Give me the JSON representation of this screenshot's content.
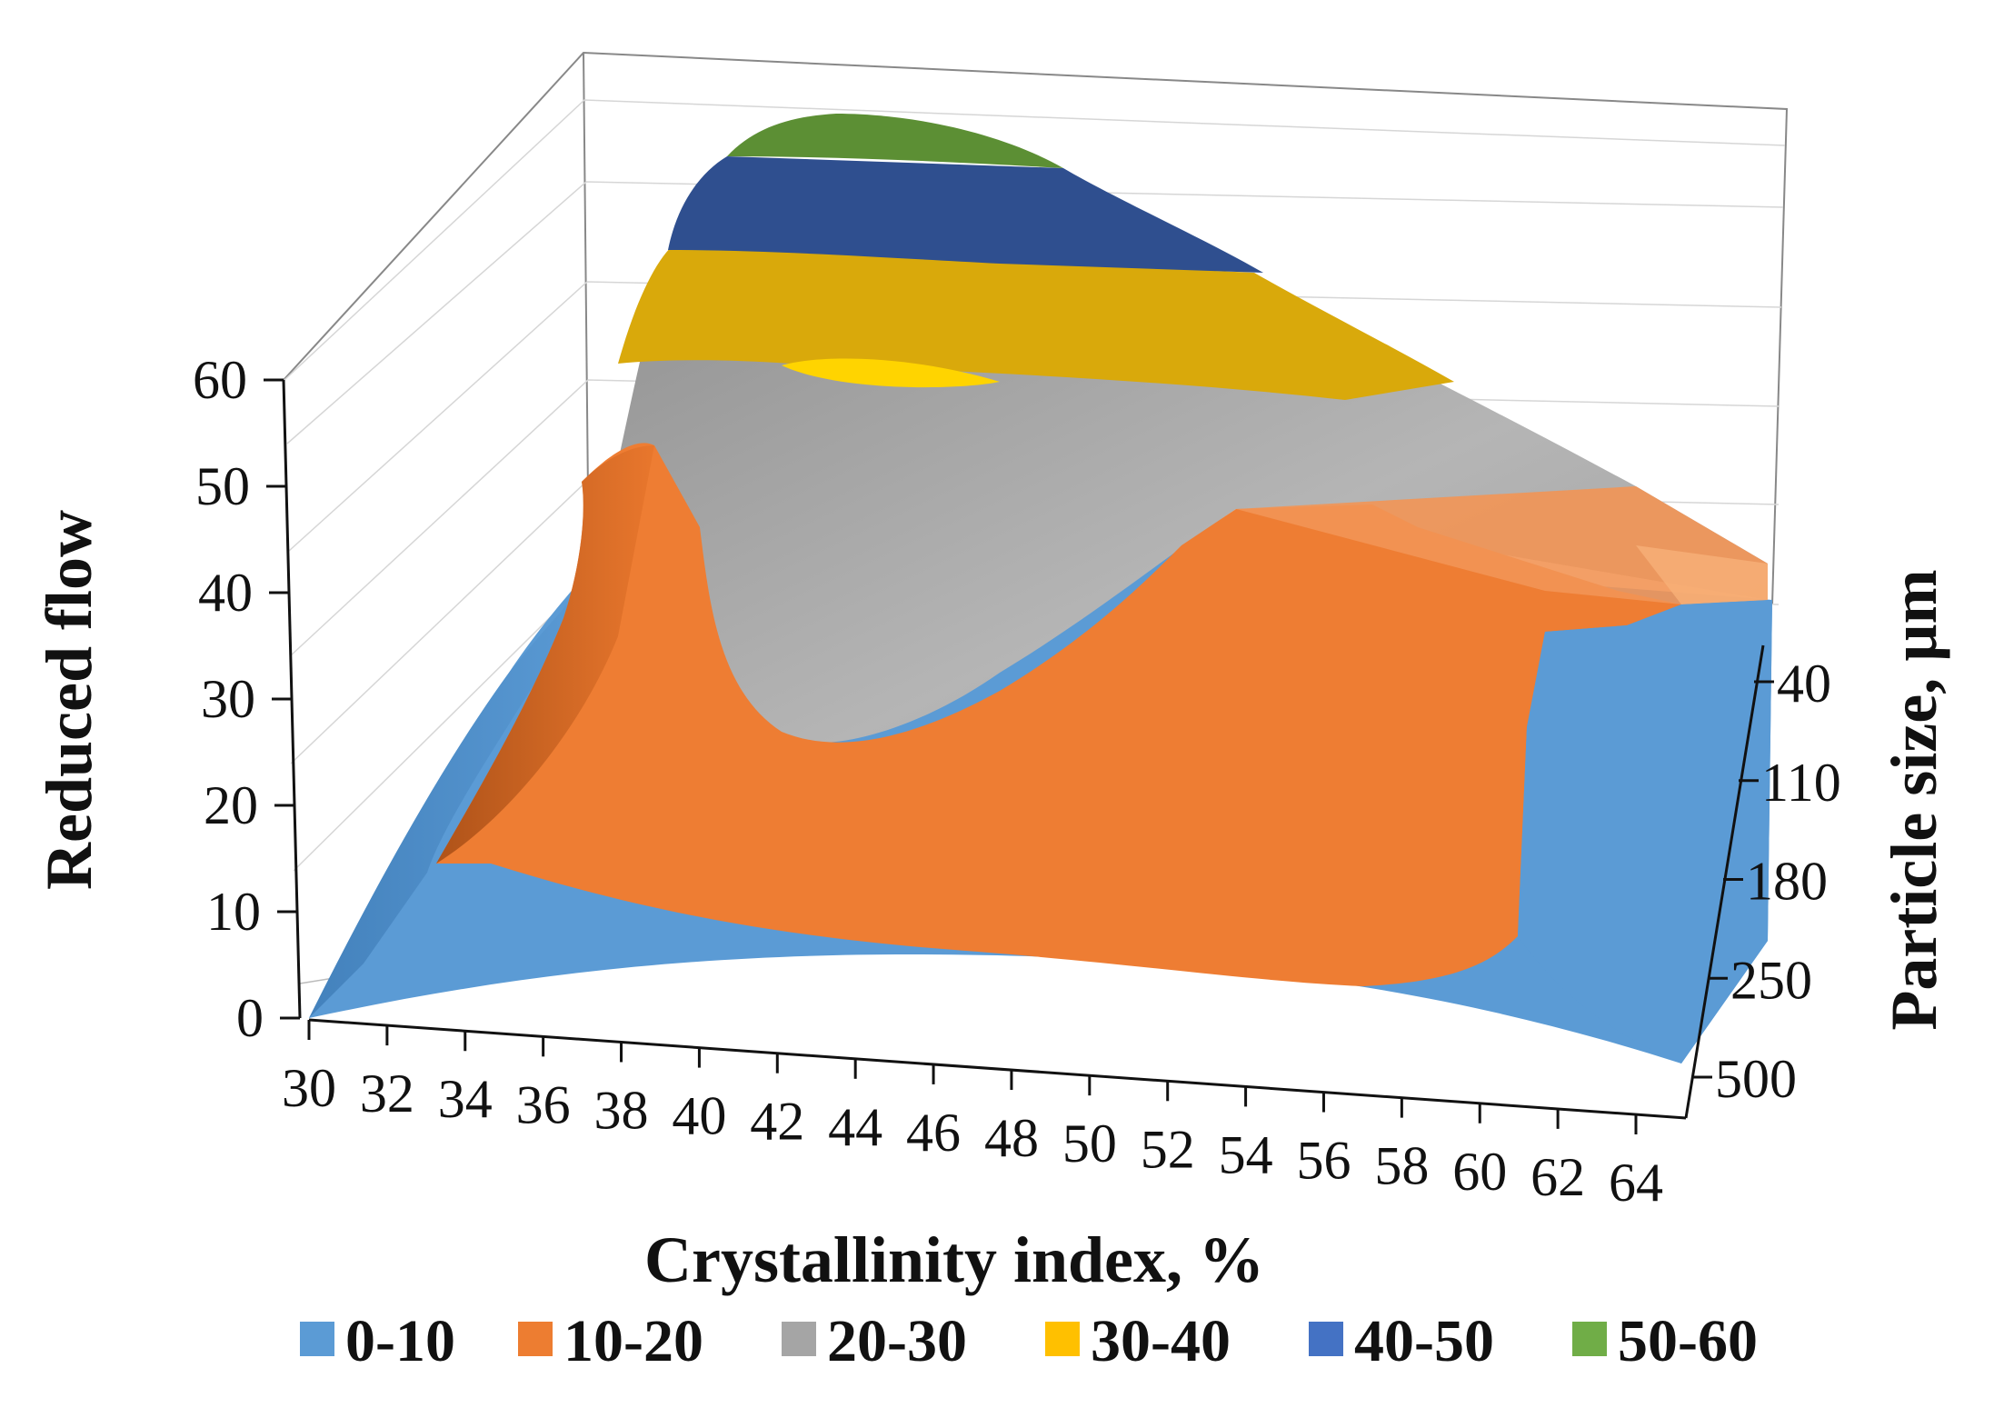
{
  "chart_data": {
    "type": "surface",
    "title": "",
    "xlabel": "Crystallinity index, %",
    "ylabel": "Particle size, µm",
    "zlabel": "Reduced flow",
    "x_ticks": [
      "30",
      "32",
      "34",
      "36",
      "38",
      "40",
      "42",
      "44",
      "46",
      "48",
      "50",
      "52",
      "54",
      "56",
      "58",
      "60",
      "62",
      "64"
    ],
    "y_ticks": [
      "40",
      "110",
      "180",
      "250",
      "500"
    ],
    "z_ticks": [
      "0",
      "10",
      "20",
      "30",
      "40",
      "50",
      "60"
    ],
    "zlim": [
      0,
      60
    ],
    "legend": [
      {
        "label": "0-10",
        "color": "#5B9BD5"
      },
      {
        "label": "10-20",
        "color": "#ED7D31"
      },
      {
        "label": "20-30",
        "color": "#A5A5A5"
      },
      {
        "label": "30-40",
        "color": "#FFC000"
      },
      {
        "label": "40-50",
        "color": "#4472C4"
      },
      {
        "label": "50-60",
        "color": "#70AD47"
      }
    ]
  }
}
